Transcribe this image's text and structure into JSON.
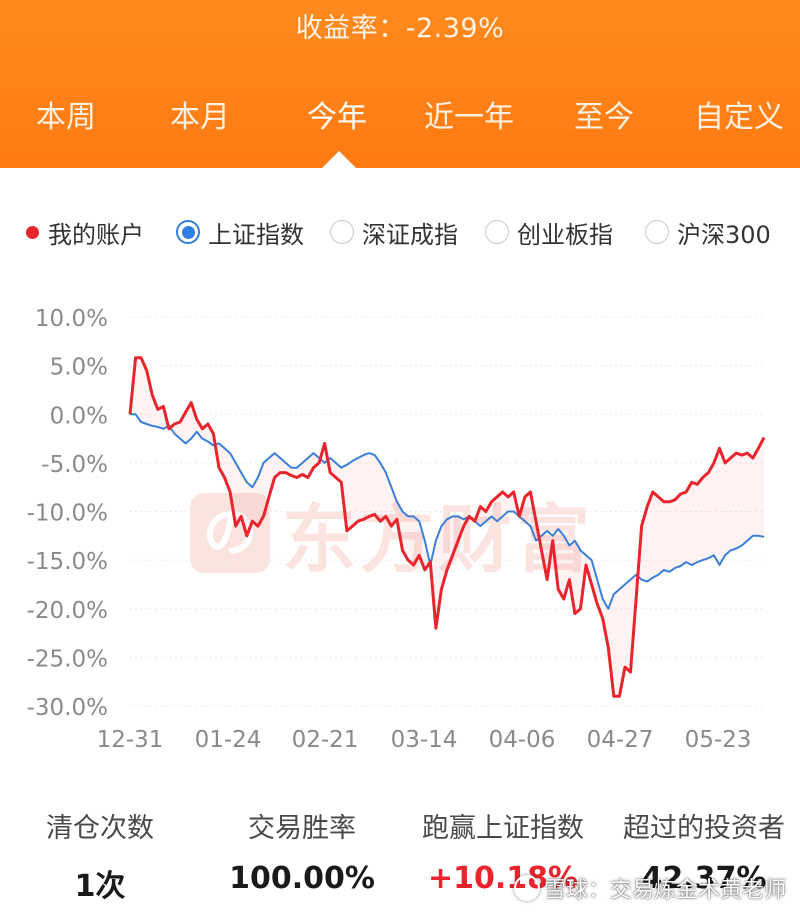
{
  "header": {
    "title": "收益率：-2.39%"
  },
  "period_tabs": [
    {
      "label": "本周",
      "active": false
    },
    {
      "label": "本月",
      "active": false
    },
    {
      "label": "今年",
      "active": true
    },
    {
      "label": "近一年",
      "active": false
    },
    {
      "label": "至今",
      "active": false
    },
    {
      "label": "自定义",
      "active": false
    }
  ],
  "legend": {
    "account_label": "我的账户",
    "options": [
      {
        "label": "上证指数",
        "selected": true
      },
      {
        "label": "深证成指",
        "selected": false
      },
      {
        "label": "创业板指",
        "selected": false
      },
      {
        "label": "沪深300",
        "selected": false
      }
    ]
  },
  "colors": {
    "header": "#ff7a12",
    "account_line": "#e8252d",
    "index_line": "#3a7fd8",
    "selected_radio": "#2f7fe0"
  },
  "watermark_icon": "eastmoney-logo-watermark",
  "watermark_text": "东方财富",
  "chart_data": {
    "type": "line",
    "y_ticks": [
      "10.0%",
      "5.0%",
      "0.0%",
      "-5.0%",
      "-10.0%",
      "-15.0%",
      "-20.0%",
      "-25.0%",
      "-30.0%"
    ],
    "x_ticks": [
      "12-31",
      "01-24",
      "02-21",
      "03-14",
      "04-06",
      "04-27",
      "05-23"
    ],
    "ylim": [
      -30,
      10
    ],
    "grid": true,
    "series": [
      {
        "name": "我的账户",
        "values": [
          0.0,
          5.8,
          5.8,
          4.5,
          2.0,
          0.5,
          0.8,
          -1.5,
          -1.0,
          -0.8,
          0.2,
          1.2,
          -0.5,
          -1.5,
          -1.0,
          -2.0,
          -5.5,
          -6.5,
          -8.0,
          -11.5,
          -10.5,
          -12.5,
          -11.0,
          -11.5,
          -10.5,
          -8.5,
          -6.5,
          -6.0,
          -6.0,
          -6.3,
          -6.5,
          -6.2,
          -6.5,
          -5.5,
          -5.0,
          -3.0,
          -6.0,
          -6.5,
          -7.0,
          -12.0,
          -11.5,
          -11.0,
          -10.8,
          -10.5,
          -10.3,
          -11.0,
          -10.5,
          -11.5,
          -10.8,
          -14.0,
          -15.0,
          -15.5,
          -14.5,
          -16.0,
          -15.2,
          -22.0,
          -18.0,
          -16.0,
          -14.5,
          -13.0,
          -11.5,
          -10.5,
          -11.0,
          -9.5,
          -10.0,
          -9.0,
          -8.5,
          -8.0,
          -8.5,
          -8.0,
          -10.5,
          -8.5,
          -8.0,
          -11.0,
          -14.0,
          -17.0,
          -13.0,
          -18.0,
          -19.0,
          -17.0,
          -20.5,
          -20.0,
          -15.5,
          -17.5,
          -19.5,
          -21.0,
          -24.0,
          -29.0,
          -29.0,
          -26.0,
          -26.5,
          -19.0,
          -11.5,
          -9.5,
          -8.0,
          -8.5,
          -9.0,
          -9.0,
          -8.8,
          -8.2,
          -8.0,
          -7.0,
          -7.2,
          -6.5,
          -6.0,
          -5.0,
          -3.5,
          -5.0,
          -4.5,
          -4.0,
          -4.2,
          -4.0,
          -4.5,
          -3.5,
          -2.39
        ]
      },
      {
        "name": "上证指数",
        "values": [
          0.0,
          0.0,
          -0.8,
          -1.0,
          -1.2,
          -1.3,
          -1.5,
          -1.2,
          -2.0,
          -2.5,
          -3.0,
          -2.5,
          -1.8,
          -2.5,
          -2.8,
          -3.2,
          -3.0,
          -3.5,
          -4.0,
          -5.0,
          -6.0,
          -7.0,
          -7.5,
          -6.5,
          -5.0,
          -4.5,
          -4.0,
          -4.5,
          -5.0,
          -5.5,
          -5.5,
          -5.0,
          -4.5,
          -4.0,
          -4.5,
          -5.0,
          -4.5,
          -5.0,
          -5.5,
          -5.2,
          -4.8,
          -4.5,
          -4.2,
          -4.0,
          -4.2,
          -5.0,
          -6.0,
          -7.5,
          -9.0,
          -10.0,
          -10.5,
          -10.5,
          -11.0,
          -13.0,
          -15.5,
          -13.0,
          -11.5,
          -10.8,
          -10.5,
          -10.5,
          -10.8,
          -10.5,
          -11.0,
          -11.5,
          -11.0,
          -10.5,
          -11.0,
          -10.5,
          -10.0,
          -10.0,
          -10.5,
          -11.0,
          -11.5,
          -13.0,
          -12.5,
          -12.0,
          -12.5,
          -11.8,
          -12.5,
          -13.5,
          -13.0,
          -14.0,
          -14.5,
          -15.0,
          -17.0,
          -19.0,
          -20.0,
          -18.5,
          -18.0,
          -17.5,
          -17.0,
          -16.5,
          -17.0,
          -17.2,
          -16.8,
          -16.5,
          -16.0,
          -16.2,
          -15.8,
          -15.6,
          -15.2,
          -15.5,
          -15.2,
          -15.0,
          -14.8,
          -14.5,
          -15.5,
          -14.5,
          -14.0,
          -13.8,
          -13.5,
          -13.0,
          -12.5,
          -12.5,
          -12.6
        ]
      }
    ]
  },
  "stats": [
    {
      "label": "清仓次数",
      "value": "1次",
      "highlight": false
    },
    {
      "label": "交易胜率",
      "value": "100.00%",
      "highlight": false
    },
    {
      "label": "跑赢上证指数",
      "value": "+10.18%",
      "highlight": true
    },
    {
      "label": "超过的投资者",
      "value": "42.37%",
      "highlight": false
    }
  ],
  "credit": "雪球：交易炼金术黄老师",
  "credit_icon": "xueqiu-snowball-icon"
}
